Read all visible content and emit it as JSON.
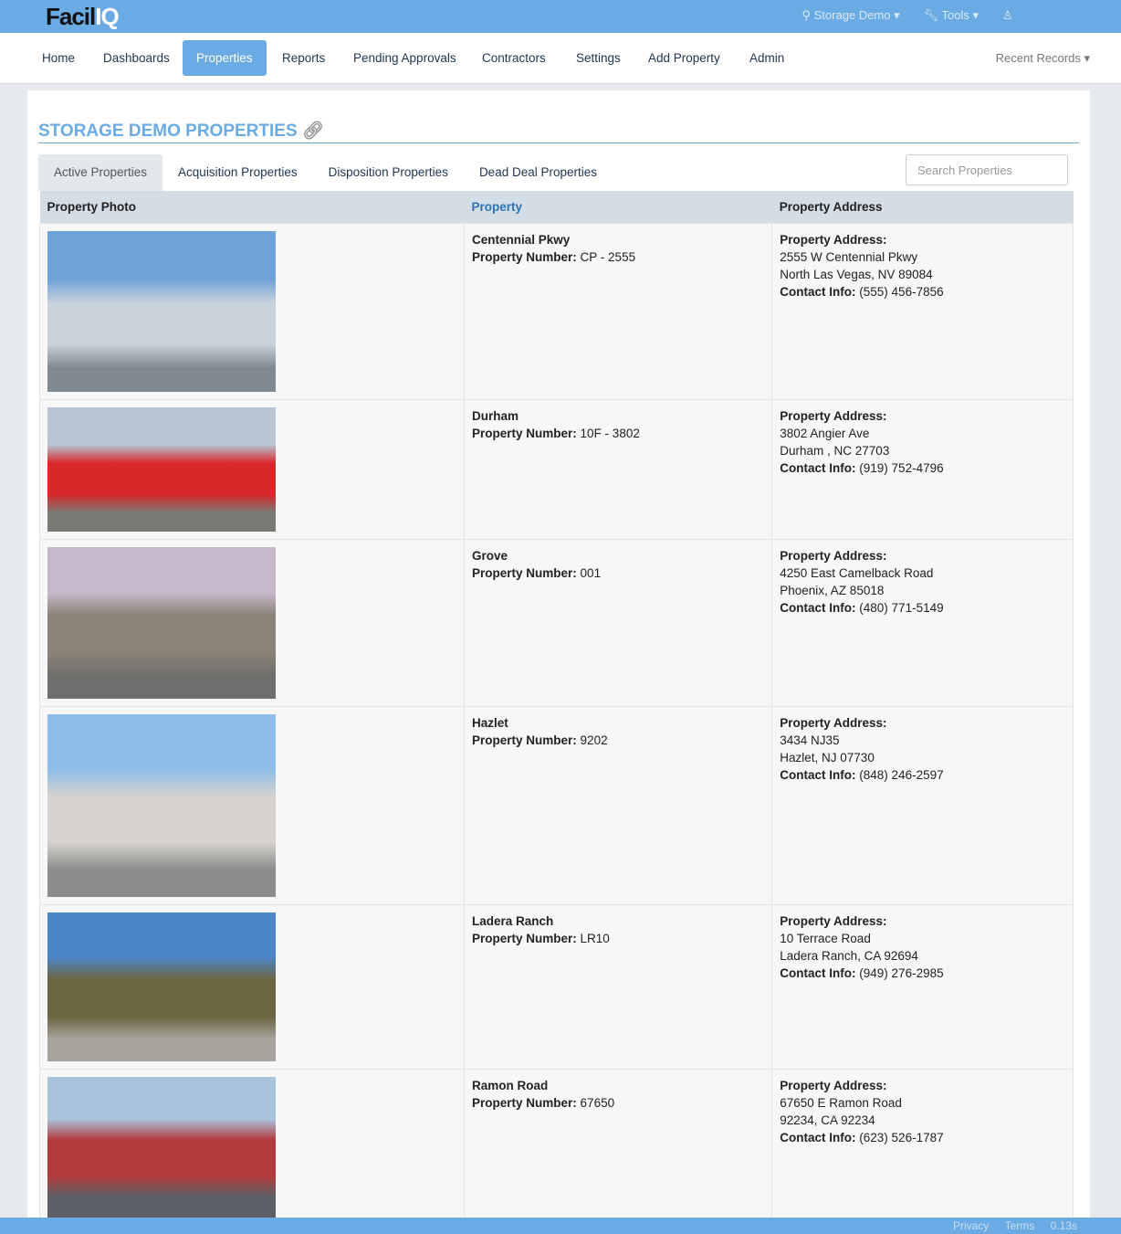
{
  "brand": {
    "logo_a": "Facil",
    "logo_b": "IQ"
  },
  "topbar": {
    "org": "Storage Demo",
    "tools": "Tools"
  },
  "nav": {
    "items": [
      "Home",
      "Dashboards",
      "Properties",
      "Reports",
      "Pending Approvals",
      "Contractors",
      "Settings",
      "Add Property",
      "Admin"
    ],
    "active": "Properties",
    "recent": "Recent Records"
  },
  "page": {
    "title": "STORAGE DEMO PROPERTIES"
  },
  "tabs": [
    "Active Properties",
    "Acquisition Properties",
    "Disposition Properties",
    "Dead Deal Properties"
  ],
  "search": {
    "placeholder": "Search Properties"
  },
  "table": {
    "headers": [
      "Property Photo",
      "Property",
      "Property Address"
    ],
    "labels": {
      "number": "Property Number:",
      "address": "Property Address:",
      "contact": "Contact Info:"
    },
    "rows": [
      {
        "name": "Centennial Pkwy",
        "number": "CP - 2555",
        "addr1": "2555 W Centennial Pkwy",
        "addr2": "North Las Vegas, NV 89084",
        "contact": "(555) 456-7856",
        "photo_colors": [
          "#6fa2d8",
          "#c8d3dc",
          "#7f8a93"
        ]
      },
      {
        "name": "Durham",
        "number": "10F - 3802",
        "addr1": "3802 Angier Ave",
        "addr2": "Durham , NC 27703",
        "contact": "(919) 752-4796",
        "photo_colors": [
          "#b7c5d6",
          "#d8282a",
          "#7a7a74"
        ]
      },
      {
        "name": "Grove",
        "number": "001",
        "addr1": "4250 East Camelback Road",
        "addr2": "Phoenix, AZ 85018",
        "contact": "(480) 771-5149",
        "photo_colors": [
          "#c7b8cc",
          "#8a8377",
          "#6f6f6d"
        ]
      },
      {
        "name": "Hazlet",
        "number": "9202",
        "addr1": "3434 NJ35",
        "addr2": "Hazlet, NJ 07730",
        "contact": "(848) 246-2597",
        "photo_colors": [
          "#8dbde8",
          "#d5d2cf",
          "#8c8c8a"
        ]
      },
      {
        "name": "Ladera Ranch",
        "number": "LR10",
        "addr1": "10 Terrace Road",
        "addr2": "Ladera Ranch, CA 92694",
        "contact": "(949) 276-2985",
        "photo_colors": [
          "#4d86c6",
          "#6b6542",
          "#a6a49c"
        ]
      },
      {
        "name": "Ramon Road",
        "number": "67650",
        "addr1": "67650 E Ramon Road",
        "addr2": "92234, CA 92234",
        "contact": "(623) 526-1787",
        "photo_colors": [
          "#a9c3dc",
          "#b43a3a",
          "#5d6066"
        ]
      }
    ]
  },
  "footer": {
    "privacy": "Privacy",
    "terms": "Terms",
    "time": "0.13s"
  }
}
